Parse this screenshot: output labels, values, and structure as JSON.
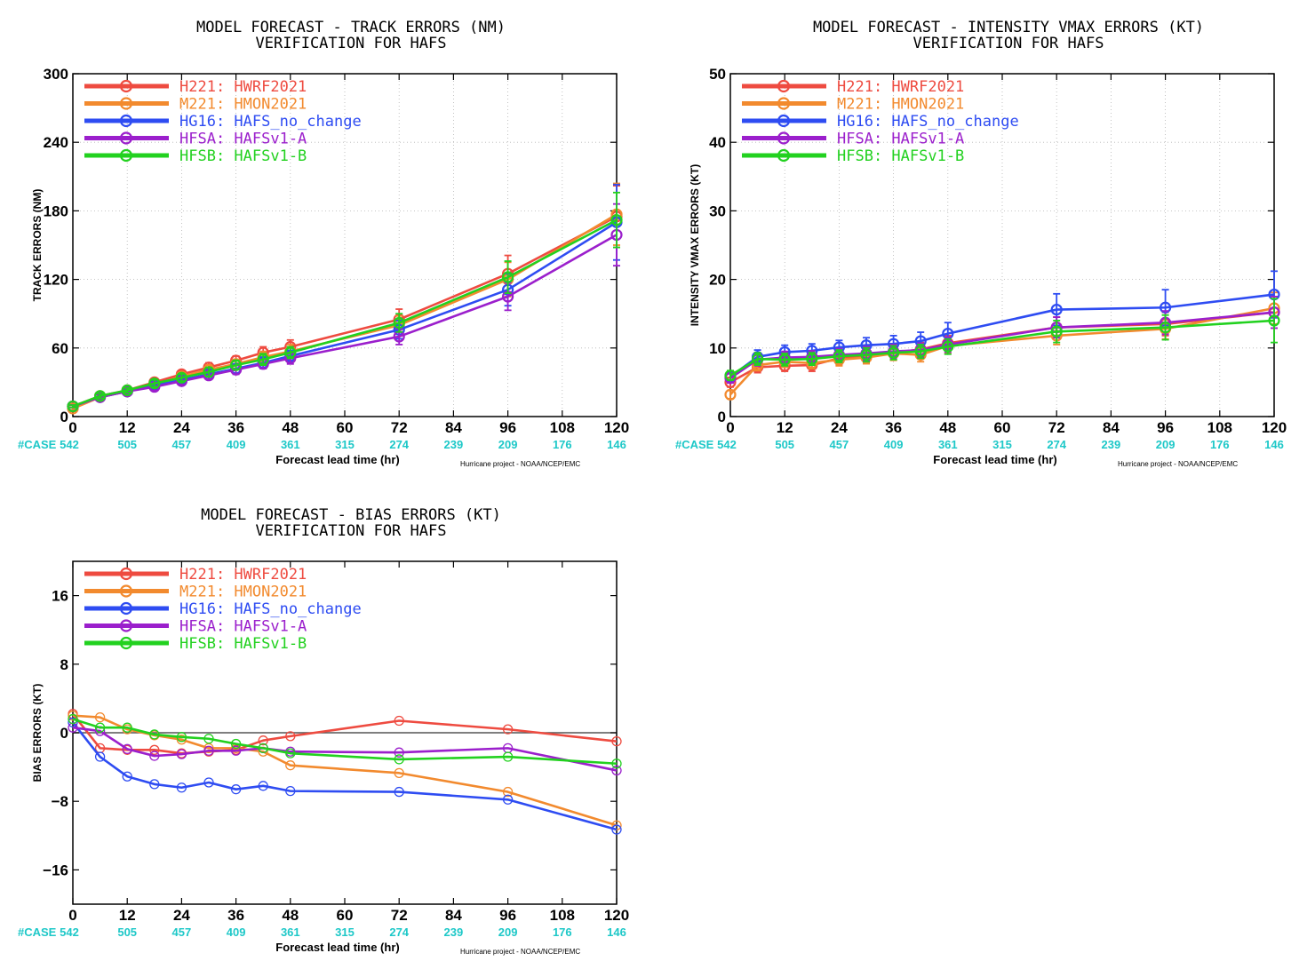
{
  "colors": {
    "H221": "#ee4b40",
    "M221": "#f28a2e",
    "HG16": "#2e4cf2",
    "HFSA": "#9b1fcc",
    "HFSB": "#22d11f",
    "case": "#1ec8c8",
    "zero_line": "#555555"
  },
  "legend": [
    {
      "key": "H221",
      "label": "H221: HWRF2021"
    },
    {
      "key": "M221",
      "label": "M221: HMON2021"
    },
    {
      "key": "HG16",
      "label": "HG16: HAFS_no_change"
    },
    {
      "key": "HFSA",
      "label": "HFSA: HAFSv1-A"
    },
    {
      "key": "HFSB",
      "label": "HFSB: HAFSv1-B"
    }
  ],
  "case_label": "#CASE",
  "case_counts": [
    "542",
    "505",
    "457",
    "409",
    "361",
    "315",
    "274",
    "239",
    "209",
    "176",
    "146"
  ],
  "xlabel": "Forecast lead time (hr)",
  "credit": "Hurricane project - NOAA/NCEP/EMC",
  "chart_data": [
    {
      "type": "line",
      "title": "MODEL FORECAST - TRACK ERRORS (NM)",
      "subtitle": "VERIFICATION FOR HAFS",
      "ylabel": "TRACK ERRORS (NM)",
      "xlabel": "Forecast lead time (hr)",
      "xlim": [
        0,
        120
      ],
      "ylim": [
        0,
        300
      ],
      "xticks": [
        0,
        12,
        24,
        36,
        48,
        60,
        72,
        84,
        96,
        108,
        120
      ],
      "yticks": [
        0,
        60,
        120,
        180,
        240,
        300
      ],
      "grid": true,
      "legend_position": "top-left",
      "x": [
        0,
        6,
        12,
        18,
        24,
        30,
        36,
        42,
        48,
        72,
        96,
        120
      ],
      "series": [
        {
          "key": "H221",
          "name": "H221: HWRF2021",
          "values": [
            9,
            18,
            23,
            30,
            37,
            43,
            49,
            56,
            61,
            85,
            125,
            175
          ],
          "errors": [
            1,
            2,
            2,
            3,
            3,
            4,
            4,
            5,
            6,
            9,
            16,
            27
          ]
        },
        {
          "key": "M221",
          "name": "M221: HMON2021",
          "values": [
            7,
            17,
            22,
            28,
            35,
            41,
            46,
            52,
            57,
            80,
            120,
            177
          ],
          "errors": [
            1,
            2,
            2,
            3,
            3,
            4,
            4,
            5,
            6,
            8,
            15,
            27
          ]
        },
        {
          "key": "HG16",
          "name": "HG16: HAFS_no_change",
          "values": [
            9,
            17,
            22,
            27,
            32,
            37,
            42,
            47,
            53,
            76,
            111,
            170
          ],
          "errors": [
            1,
            2,
            2,
            3,
            3,
            4,
            4,
            5,
            5,
            8,
            14,
            33
          ]
        },
        {
          "key": "HFSA",
          "name": "HFSA: HAFSv1-A",
          "values": [
            9,
            17,
            22,
            26,
            31,
            36,
            41,
            46,
            51,
            70,
            105,
            159
          ],
          "errors": [
            1,
            2,
            2,
            3,
            3,
            3,
            4,
            4,
            5,
            7,
            12,
            27
          ]
        },
        {
          "key": "HFSB",
          "name": "HFSB: HAFSv1-B",
          "values": [
            9,
            18,
            23,
            29,
            34,
            39,
            45,
            50,
            56,
            82,
            122,
            172
          ],
          "errors": [
            1,
            2,
            2,
            3,
            3,
            4,
            4,
            5,
            5,
            8,
            14,
            24
          ]
        }
      ]
    },
    {
      "type": "line",
      "title": "MODEL FORECAST - INTENSITY VMAX ERRORS (KT)",
      "subtitle": "VERIFICATION FOR HAFS",
      "ylabel": "INTENSITY VMAX ERRORS (KT)",
      "xlabel": "Forecast lead time (hr)",
      "xlim": [
        0,
        120
      ],
      "ylim": [
        0,
        50
      ],
      "xticks": [
        0,
        12,
        24,
        36,
        48,
        60,
        72,
        84,
        96,
        108,
        120
      ],
      "yticks": [
        0,
        10,
        20,
        30,
        40,
        50
      ],
      "grid": true,
      "legend_position": "top-left",
      "x": [
        0,
        6,
        12,
        18,
        24,
        30,
        36,
        42,
        48,
        72,
        96,
        120
      ],
      "series": [
        {
          "key": "H221",
          "name": "H221: HWRF2021",
          "values": [
            5,
            7.2,
            7.4,
            7.5,
            8.5,
            8.8,
            9.3,
            9.8,
            10.7,
            13,
            13.5,
            15.2
          ],
          "errors": [
            0.7,
            0.8,
            0.8,
            0.9,
            0.9,
            0.9,
            1,
            1,
            1.1,
            1.5,
            1.7,
            2.3
          ]
        },
        {
          "key": "M221",
          "name": "M221: HMON2021",
          "values": [
            3.2,
            7.5,
            8,
            7.8,
            8.3,
            8.6,
            9.2,
            9,
            10.3,
            11.8,
            12.8,
            15.8
          ],
          "errors": [
            0.6,
            0.8,
            0.8,
            0.8,
            0.9,
            0.9,
            1,
            1,
            1.1,
            1.3,
            1.5,
            2.3
          ]
        },
        {
          "key": "HG16",
          "name": "HG16: HAFS_no_change",
          "values": [
            5.8,
            8.7,
            9.4,
            9.6,
            10.1,
            10.4,
            10.6,
            11,
            12.1,
            15.6,
            15.9,
            17.8
          ],
          "errors": [
            0.7,
            1,
            1,
            1,
            1,
            1.1,
            1.2,
            1.3,
            1.6,
            2.3,
            2.6,
            3.4
          ]
        },
        {
          "key": "HFSA",
          "name": "HFSA: HAFSv1-A",
          "values": [
            5.6,
            8.3,
            8.6,
            8.7,
            9,
            9.2,
            9.5,
            9.7,
            10.5,
            13,
            13.7,
            15.2
          ],
          "errors": [
            0.7,
            0.9,
            0.9,
            0.9,
            0.9,
            1,
            1,
            1,
            1.1,
            1.5,
            1.7,
            2.3
          ]
        },
        {
          "key": "HFSB",
          "name": "HFSB: HAFSv1-B",
          "values": [
            6,
            8.4,
            8.3,
            8.4,
            8.8,
            9,
            9.3,
            9.5,
            10.2,
            12.4,
            13,
            14
          ],
          "errors": [
            0.7,
            0.9,
            0.9,
            0.9,
            0.9,
            1,
            1,
            1,
            1.1,
            1.6,
            1.8,
            3.2
          ]
        }
      ]
    },
    {
      "type": "line",
      "title": "MODEL FORECAST - BIAS ERRORS (KT)",
      "subtitle": "VERIFICATION FOR HAFS",
      "ylabel": "BIAS ERRORS (KT)",
      "xlabel": "Forecast lead time (hr)",
      "xlim": [
        0,
        120
      ],
      "ylim": [
        -20,
        20
      ],
      "xticks": [
        0,
        12,
        24,
        36,
        48,
        60,
        72,
        84,
        96,
        108,
        120
      ],
      "yticks": [
        -16,
        -8,
        0,
        8,
        16
      ],
      "grid": false,
      "zero_line": true,
      "legend_position": "top-left",
      "x": [
        0,
        6,
        12,
        18,
        24,
        30,
        36,
        42,
        48,
        72,
        96,
        120
      ],
      "series": [
        {
          "key": "H221",
          "name": "H221: HWRF2021",
          "values": [
            2.2,
            -1.8,
            -2,
            -2,
            -2.4,
            -2.2,
            -2,
            -0.9,
            -0.4,
            1.4,
            0.4,
            -1
          ]
        },
        {
          "key": "M221",
          "name": "M221: HMON2021",
          "values": [
            2,
            1.8,
            0.4,
            -0.3,
            -0.8,
            -1.8,
            -1.8,
            -2.2,
            -3.8,
            -4.7,
            -6.9,
            -10.8
          ]
        },
        {
          "key": "HG16",
          "name": "HG16: HAFS_no_change",
          "values": [
            1.2,
            -2.8,
            -5.1,
            -6,
            -6.4,
            -5.8,
            -6.6,
            -6.2,
            -6.8,
            -6.9,
            -7.8,
            -11.3
          ]
        },
        {
          "key": "HFSA",
          "name": "HFSA: HAFSv1-A",
          "values": [
            0.6,
            0.2,
            -1.9,
            -2.7,
            -2.5,
            -2.1,
            -2.1,
            -1.8,
            -2.2,
            -2.3,
            -1.8,
            -4.4
          ]
        },
        {
          "key": "HFSB",
          "name": "HFSB: HAFSv1-B",
          "values": [
            1.6,
            0.6,
            0.6,
            -0.2,
            -0.5,
            -0.7,
            -1.3,
            -1.8,
            -2.4,
            -3.1,
            -2.8,
            -3.6
          ]
        }
      ]
    }
  ]
}
